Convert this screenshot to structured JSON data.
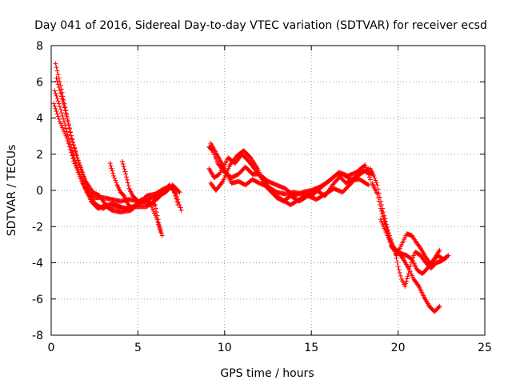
{
  "chart_data": {
    "type": "scatter",
    "title": "Day 041 of 2016, Sidereal Day-to-day VTEC variation (SDTVAR) for receiver ecsd",
    "xlabel": "GPS time / hours",
    "ylabel": "SDTVAR / TECUs",
    "xlim": [
      0,
      25
    ],
    "ylim": [
      -8,
      8
    ],
    "xticks": [
      "0",
      "5",
      "10",
      "15",
      "20",
      "25"
    ],
    "yticks": [
      "-8",
      "-6",
      "-4",
      "-2",
      "0",
      "2",
      "4",
      "6",
      "8"
    ],
    "grid": true,
    "marker": "+",
    "series": [
      {
        "name": "SDTVAR",
        "color": "#ff0000",
        "tracks": [
          [
            [
              0.25,
              7.0
            ],
            [
              0.5,
              6.0
            ],
            [
              0.8,
              4.6
            ],
            [
              1.1,
              3.2
            ],
            [
              1.5,
              1.8
            ],
            [
              1.8,
              0.9
            ],
            [
              2.1,
              0.1
            ],
            [
              2.5,
              -0.4
            ],
            [
              3.0,
              -0.4
            ],
            [
              3.5,
              -0.5
            ],
            [
              4.0,
              -0.6
            ],
            [
              4.5,
              -0.5
            ],
            [
              5.0,
              -0.6
            ],
            [
              5.5,
              -0.6
            ],
            [
              6.0,
              -0.8
            ],
            [
              6.2,
              -1.8
            ],
            [
              6.4,
              -2.5
            ]
          ],
          [
            [
              0.2,
              5.5
            ],
            [
              0.45,
              4.8
            ],
            [
              0.8,
              3.6
            ],
            [
              1.2,
              2.2
            ],
            [
              1.6,
              1.0
            ],
            [
              2.0,
              0.0
            ],
            [
              2.3,
              -0.6
            ],
            [
              2.7,
              -1.0
            ],
            [
              3.2,
              -0.8
            ],
            [
              3.8,
              -0.9
            ],
            [
              4.4,
              -1.0
            ],
            [
              5.0,
              -0.8
            ],
            [
              5.5,
              -0.3
            ],
            [
              6.0,
              -0.2
            ],
            [
              6.5,
              0.1
            ],
            [
              7.0,
              0.2
            ],
            [
              7.3,
              -0.8
            ]
          ],
          [
            [
              0.15,
              4.8
            ],
            [
              0.5,
              3.8
            ],
            [
              0.9,
              2.9
            ],
            [
              1.3,
              1.6
            ],
            [
              1.8,
              0.4
            ],
            [
              2.2,
              -0.3
            ],
            [
              2.6,
              -0.8
            ],
            [
              3.0,
              -1.0
            ],
            [
              3.5,
              -0.7
            ],
            [
              4.2,
              -1.0
            ],
            [
              4.8,
              -0.9
            ],
            [
              5.5,
              -0.9
            ],
            [
              6.2,
              -0.4
            ],
            [
              6.8,
              0.3
            ],
            [
              7.2,
              -0.2
            ],
            [
              7.5,
              -1.1
            ]
          ],
          [
            [
              0.3,
              6.2
            ],
            [
              0.6,
              5.2
            ],
            [
              0.9,
              4.1
            ],
            [
              1.2,
              2.8
            ],
            [
              1.6,
              1.5
            ],
            [
              2.0,
              0.5
            ],
            [
              2.4,
              -0.1
            ],
            [
              2.8,
              -0.3
            ],
            [
              3.2,
              -0.9
            ],
            [
              3.5,
              -1.1
            ],
            [
              4.0,
              -1.2
            ],
            [
              4.6,
              -1.1
            ],
            [
              5.2,
              -0.6
            ],
            [
              5.7,
              -0.7
            ],
            [
              6.1,
              -1.6
            ],
            [
              6.3,
              -2.3
            ]
          ],
          [
            [
              3.4,
              1.5
            ],
            [
              3.6,
              0.8
            ],
            [
              3.8,
              0.3
            ],
            [
              4.0,
              -0.1
            ],
            [
              4.2,
              -0.3
            ],
            [
              4.4,
              -0.7
            ],
            [
              4.6,
              -1.0
            ],
            [
              4.9,
              -0.8
            ],
            [
              5.2,
              -0.5
            ],
            [
              5.6,
              -0.6
            ]
          ],
          [
            [
              4.1,
              1.6
            ],
            [
              4.3,
              0.9
            ],
            [
              4.5,
              0.1
            ],
            [
              4.7,
              -0.3
            ],
            [
              4.9,
              -0.5
            ],
            [
              5.1,
              -0.7
            ],
            [
              5.4,
              -0.6
            ],
            [
              5.8,
              -0.4
            ],
            [
              6.2,
              -0.3
            ],
            [
              6.6,
              -0.1
            ],
            [
              7.0,
              0.3
            ],
            [
              7.4,
              -0.1
            ]
          ],
          [
            [
              9.1,
              2.4
            ],
            [
              9.3,
              2.2
            ],
            [
              9.6,
              1.5
            ],
            [
              10.0,
              1.0
            ],
            [
              10.4,
              0.7
            ],
            [
              10.8,
              0.9
            ],
            [
              11.2,
              1.3
            ],
            [
              11.6,
              0.9
            ],
            [
              12.0,
              0.9
            ],
            [
              12.5,
              0.5
            ],
            [
              13.0,
              0.3
            ],
            [
              13.5,
              0.1
            ],
            [
              14.0,
              -0.3
            ],
            [
              14.5,
              -0.1
            ],
            [
              15.0,
              0.0
            ],
            [
              15.5,
              0.2
            ],
            [
              16.0,
              0.5
            ],
            [
              16.5,
              0.9
            ],
            [
              17.0,
              0.4
            ],
            [
              17.5,
              0.7
            ],
            [
              18.0,
              1.1
            ],
            [
              18.5,
              0.9
            ]
          ],
          [
            [
              9.1,
              1.2
            ],
            [
              9.4,
              0.7
            ],
            [
              9.7,
              0.9
            ],
            [
              10.2,
              1.8
            ],
            [
              10.6,
              1.5
            ],
            [
              11.0,
              2.0
            ],
            [
              11.4,
              1.6
            ],
            [
              11.8,
              1.1
            ],
            [
              12.2,
              0.6
            ],
            [
              12.6,
              0.1
            ],
            [
              13.0,
              -0.4
            ],
            [
              13.4,
              -0.6
            ],
            [
              13.8,
              -0.3
            ],
            [
              14.3,
              -0.6
            ],
            [
              14.8,
              -0.3
            ],
            [
              15.3,
              -0.5
            ],
            [
              15.8,
              -0.2
            ],
            [
              16.3,
              0.1
            ],
            [
              16.8,
              -0.1
            ],
            [
              17.3,
              0.4
            ],
            [
              17.8,
              0.9
            ],
            [
              18.3,
              1.2
            ]
          ],
          [
            [
              9.2,
              0.4
            ],
            [
              9.5,
              0.0
            ],
            [
              9.9,
              0.5
            ],
            [
              10.3,
              1.4
            ],
            [
              10.7,
              1.9
            ],
            [
              11.1,
              2.2
            ],
            [
              11.5,
              1.8
            ],
            [
              11.9,
              1.2
            ],
            [
              12.3,
              0.3
            ],
            [
              12.8,
              -0.2
            ],
            [
              13.3,
              -0.5
            ],
            [
              13.8,
              -0.8
            ],
            [
              14.3,
              -0.5
            ],
            [
              14.8,
              -0.2
            ],
            [
              15.3,
              0.0
            ],
            [
              15.8,
              -0.3
            ],
            [
              16.3,
              0.4
            ],
            [
              16.8,
              0.9
            ],
            [
              17.3,
              0.6
            ],
            [
              17.8,
              0.6
            ],
            [
              18.3,
              0.3
            ]
          ],
          [
            [
              9.2,
              2.6
            ],
            [
              9.6,
              1.9
            ],
            [
              10.0,
              1.2
            ],
            [
              10.4,
              0.4
            ],
            [
              10.8,
              0.5
            ],
            [
              11.2,
              0.3
            ],
            [
              11.6,
              0.6
            ],
            [
              12.0,
              0.4
            ],
            [
              12.5,
              0.2
            ],
            [
              13.0,
              -0.1
            ],
            [
              13.5,
              -0.2
            ],
            [
              14.0,
              -0.1
            ],
            [
              14.5,
              -0.2
            ],
            [
              15.0,
              -0.3
            ],
            [
              15.6,
              0.2
            ],
            [
              16.1,
              0.6
            ],
            [
              16.6,
              1.0
            ],
            [
              17.1,
              0.8
            ],
            [
              17.6,
              1.0
            ],
            [
              18.1,
              1.4
            ],
            [
              18.4,
              0.6
            ]
          ],
          [
            [
              18.4,
              1.2
            ],
            [
              18.6,
              0.8
            ],
            [
              18.8,
              0.3
            ],
            [
              19.0,
              -0.6
            ],
            [
              19.2,
              -1.4
            ],
            [
              19.5,
              -2.5
            ],
            [
              19.8,
              -3.3
            ],
            [
              20.0,
              -4.2
            ],
            [
              20.2,
              -4.9
            ],
            [
              20.4,
              -5.3
            ],
            [
              20.6,
              -4.6
            ],
            [
              20.8,
              -3.8
            ],
            [
              21.0,
              -3.4
            ],
            [
              21.3,
              -3.6
            ],
            [
              21.6,
              -4.0
            ],
            [
              21.9,
              -4.3
            ],
            [
              22.2,
              -4.0
            ],
            [
              22.5,
              -3.9
            ],
            [
              22.8,
              -3.7
            ]
          ],
          [
            [
              18.5,
              0.4
            ],
            [
              18.8,
              -0.2
            ],
            [
              19.0,
              -1.0
            ],
            [
              19.3,
              -2.0
            ],
            [
              19.6,
              -2.9
            ],
            [
              19.9,
              -3.6
            ],
            [
              20.1,
              -3.2
            ],
            [
              20.3,
              -2.8
            ],
            [
              20.5,
              -2.4
            ],
            [
              20.8,
              -2.5
            ],
            [
              21.0,
              -2.8
            ],
            [
              21.3,
              -3.2
            ],
            [
              21.6,
              -3.7
            ],
            [
              21.9,
              -4.1
            ],
            [
              22.2,
              -3.6
            ],
            [
              22.4,
              -3.3
            ]
          ],
          [
            [
              19.0,
              -1.6
            ],
            [
              19.3,
              -2.3
            ],
            [
              19.6,
              -3.0
            ],
            [
              20.0,
              -3.4
            ],
            [
              20.3,
              -3.8
            ],
            [
              20.6,
              -4.3
            ],
            [
              20.9,
              -4.9
            ],
            [
              21.2,
              -5.3
            ],
            [
              21.5,
              -5.9
            ],
            [
              21.8,
              -6.4
            ],
            [
              22.1,
              -6.7
            ],
            [
              22.4,
              -6.4
            ]
          ],
          [
            [
              19.6,
              -3.1
            ],
            [
              19.9,
              -3.4
            ],
            [
              20.2,
              -3.5
            ],
            [
              20.5,
              -3.6
            ],
            [
              20.8,
              -3.8
            ],
            [
              21.1,
              -4.4
            ],
            [
              21.4,
              -4.6
            ],
            [
              21.7,
              -4.3
            ],
            [
              22.0,
              -3.9
            ],
            [
              22.3,
              -3.6
            ],
            [
              22.6,
              -3.8
            ],
            [
              22.9,
              -3.6
            ]
          ]
        ]
      }
    ]
  }
}
